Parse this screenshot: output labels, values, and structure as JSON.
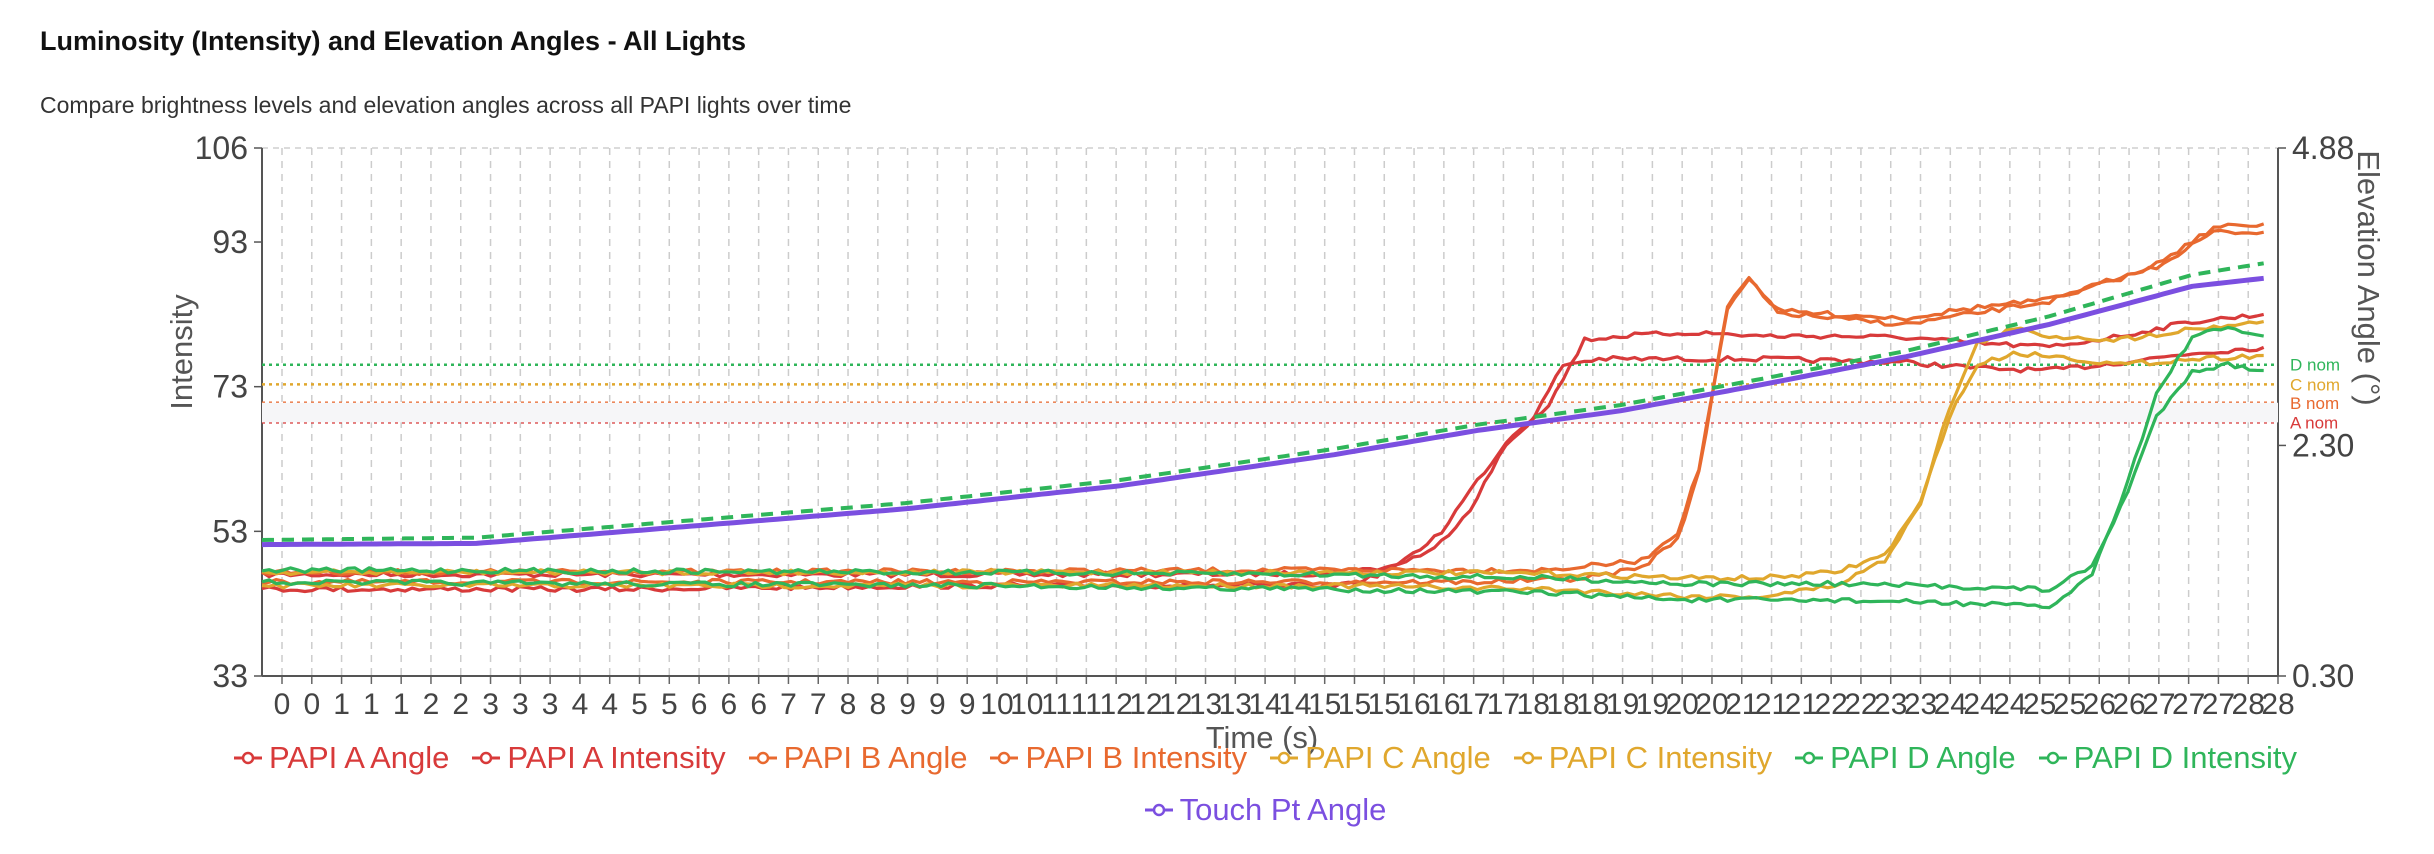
{
  "header": {
    "title": "Luminosity (Intensity) and Elevation Angles - All Lights",
    "subtitle": "Compare brightness levels and elevation angles across all PAPI lights over time"
  },
  "chart_data": {
    "type": "line",
    "xlabel": "Time (s)",
    "ylabel": "Intensity",
    "y2label": "Elevation Angle (°)",
    "xlim": [
      0,
      28.2
    ],
    "ylim": [
      33,
      106
    ],
    "y2lim": [
      0.3,
      4.88
    ],
    "x_ticks": [
      "0",
      "0",
      "1",
      "1",
      "1",
      "2",
      "2",
      "3",
      "3",
      "3",
      "4",
      "4",
      "5",
      "5",
      "6",
      "6",
      "6",
      "7",
      "7",
      "8",
      "8",
      "9",
      "9",
      "9",
      "10",
      "10",
      "11",
      "11",
      "12",
      "12",
      "12",
      "13",
      "13",
      "14",
      "14",
      "15",
      "15",
      "15",
      "16",
      "16",
      "17",
      "17",
      "18",
      "18",
      "18",
      "19",
      "19",
      "20",
      "20",
      "21",
      "21",
      "21",
      "22",
      "22",
      "23",
      "23",
      "24",
      "24",
      "24",
      "25",
      "25",
      "26",
      "26",
      "27",
      "27",
      "27",
      "28",
      "28"
    ],
    "y_ticks": [
      "33",
      "53",
      "73",
      "93",
      "106"
    ],
    "y2_ticks": [
      "0.30",
      "2.30",
      "4.88"
    ],
    "grid": {
      "vertical": true,
      "horizontal": false
    },
    "legend_position": "bottom",
    "reference_lines": [
      {
        "label": "D nom",
        "y": 3.0,
        "axis": "y2",
        "color": "#2fb55a"
      },
      {
        "label": "C nom",
        "y": 2.83,
        "axis": "y2",
        "color": "#e0a72d"
      },
      {
        "label": "B nom",
        "y": 2.67,
        "axis": "y2",
        "color": "#e8692f"
      },
      {
        "label": "A nom",
        "y": 2.5,
        "axis": "y2",
        "color": "#d83a3a"
      }
    ],
    "series": [
      {
        "name": "PAPI A Angle",
        "axis": "y2",
        "color": "#d83a3a",
        "points": [
          [
            0,
            1.18
          ],
          [
            6,
            1.18
          ],
          [
            12,
            1.18
          ],
          [
            15,
            1.19
          ],
          [
            15.8,
            1.25
          ],
          [
            16.4,
            1.4
          ],
          [
            16.9,
            1.75
          ],
          [
            17.4,
            2.3
          ],
          [
            17.8,
            2.55
          ],
          [
            18.2,
            3.0
          ],
          [
            18.7,
            3.05
          ],
          [
            19.5,
            3.05
          ],
          [
            21,
            3.05
          ],
          [
            23,
            3.02
          ],
          [
            24,
            2.97
          ],
          [
            25,
            2.95
          ],
          [
            26,
            3.02
          ],
          [
            27,
            3.1
          ],
          [
            28,
            3.15
          ]
        ]
      },
      {
        "name": "PAPI A Intensity",
        "axis": "y",
        "color": "#d83a3a",
        "points": [
          [
            0,
            45
          ],
          [
            5,
            45
          ],
          [
            10,
            45.5
          ],
          [
            15,
            45.5
          ],
          [
            15.5,
            46.5
          ],
          [
            16,
            49
          ],
          [
            16.5,
            53
          ],
          [
            17,
            60
          ],
          [
            17.5,
            66.5
          ],
          [
            18,
            70.5
          ],
          [
            18.5,
            79.5
          ],
          [
            19,
            80
          ],
          [
            20,
            80.5
          ],
          [
            21,
            80
          ],
          [
            22,
            80
          ],
          [
            23,
            79.8
          ],
          [
            24,
            79
          ],
          [
            25,
            78.5
          ],
          [
            26,
            80
          ],
          [
            27,
            82
          ],
          [
            28,
            83
          ]
        ]
      },
      {
        "name": "PAPI B Angle",
        "axis": "y2",
        "color": "#e8692f",
        "points": [
          [
            0,
            1.2
          ],
          [
            10,
            1.21
          ],
          [
            15,
            1.22
          ],
          [
            18,
            1.22
          ],
          [
            19.3,
            1.3
          ],
          [
            19.8,
            1.55
          ],
          [
            20.1,
            2.1
          ],
          [
            20.5,
            3.5
          ],
          [
            20.8,
            3.75
          ],
          [
            21.2,
            3.45
          ],
          [
            22,
            3.4
          ],
          [
            23,
            3.35
          ],
          [
            24,
            3.45
          ],
          [
            25,
            3.55
          ],
          [
            25.5,
            3.65
          ],
          [
            26.5,
            3.85
          ],
          [
            27.3,
            4.15
          ],
          [
            28,
            4.15
          ]
        ]
      },
      {
        "name": "PAPI B Intensity",
        "axis": "y",
        "color": "#e8692f",
        "points": [
          [
            0,
            46
          ],
          [
            10,
            46
          ],
          [
            17,
            46
          ],
          [
            18.5,
            46.5
          ],
          [
            19.3,
            48
          ],
          [
            19.8,
            52
          ],
          [
            20.1,
            61
          ],
          [
            20.5,
            84
          ],
          [
            20.8,
            88
          ],
          [
            21.2,
            83.5
          ],
          [
            22,
            83
          ],
          [
            23,
            82.5
          ],
          [
            24,
            84
          ],
          [
            25,
            85
          ],
          [
            25.5,
            86.5
          ],
          [
            26.5,
            90
          ],
          [
            27.3,
            95
          ],
          [
            28,
            95.5
          ]
        ]
      },
      {
        "name": "PAPI C Angle",
        "axis": "y2",
        "color": "#e0a72d",
        "points": [
          [
            0,
            1.2
          ],
          [
            10,
            1.2
          ],
          [
            15,
            1.2
          ],
          [
            18,
            1.19
          ],
          [
            20,
            1.15
          ],
          [
            21,
            1.15
          ],
          [
            22,
            1.2
          ],
          [
            22.7,
            1.35
          ],
          [
            23.2,
            1.8
          ],
          [
            23.6,
            2.55
          ],
          [
            24,
            3.0
          ],
          [
            24.5,
            3.1
          ],
          [
            25,
            3.08
          ],
          [
            26,
            3.0
          ],
          [
            27,
            3.05
          ],
          [
            28,
            3.08
          ]
        ]
      },
      {
        "name": "PAPI C Intensity",
        "axis": "y",
        "color": "#e0a72d",
        "points": [
          [
            0,
            45.5
          ],
          [
            10,
            45.5
          ],
          [
            15,
            45.5
          ],
          [
            18,
            45
          ],
          [
            20,
            44
          ],
          [
            21,
            44
          ],
          [
            22,
            45.5
          ],
          [
            22.7,
            49
          ],
          [
            23.2,
            57
          ],
          [
            23.6,
            70
          ],
          [
            24,
            79
          ],
          [
            24.5,
            81
          ],
          [
            25,
            80
          ],
          [
            26,
            79.5
          ],
          [
            27,
            81
          ],
          [
            28,
            82
          ]
        ]
      },
      {
        "name": "PAPI D Angle",
        "axis": "y2",
        "color": "#2fb55a",
        "points": [
          [
            0,
            1.22
          ],
          [
            10,
            1.2
          ],
          [
            15,
            1.18
          ],
          [
            18,
            1.15
          ],
          [
            20,
            1.1
          ],
          [
            22,
            1.1
          ],
          [
            24,
            1.07
          ],
          [
            25,
            1.05
          ],
          [
            25.6,
            1.25
          ],
          [
            26.1,
            1.9
          ],
          [
            26.5,
            2.55
          ],
          [
            27,
            2.95
          ],
          [
            27.5,
            3.0
          ],
          [
            28,
            2.95
          ]
        ]
      },
      {
        "name": "PAPI D Intensity",
        "axis": "y",
        "color": "#2fb55a",
        "points": [
          [
            0,
            46
          ],
          [
            10,
            45.5
          ],
          [
            15,
            45
          ],
          [
            18,
            44.5
          ],
          [
            20,
            43.5
          ],
          [
            22,
            43.5
          ],
          [
            24,
            43
          ],
          [
            25,
            42.5
          ],
          [
            25.6,
            47
          ],
          [
            26.1,
            60
          ],
          [
            26.5,
            72
          ],
          [
            27,
            80
          ],
          [
            27.5,
            81
          ],
          [
            28,
            80
          ]
        ]
      },
      {
        "name": "Touch Pt Angle",
        "axis": "y2",
        "color": "#7b4fe0",
        "points": [
          [
            0,
            1.44
          ],
          [
            3,
            1.45
          ],
          [
            6,
            1.6
          ],
          [
            9,
            1.75
          ],
          [
            12,
            1.95
          ],
          [
            15,
            2.22
          ],
          [
            17,
            2.43
          ],
          [
            19,
            2.6
          ],
          [
            21,
            2.83
          ],
          [
            23,
            3.07
          ],
          [
            25,
            3.35
          ],
          [
            27,
            3.68
          ],
          [
            28,
            3.75
          ]
        ]
      },
      {
        "name": "Touch Pt Angle (dashed)",
        "legend": false,
        "dashed": true,
        "axis": "y2",
        "color": "#2fb55a",
        "points": [
          [
            0,
            1.48
          ],
          [
            3,
            1.5
          ],
          [
            6,
            1.65
          ],
          [
            9,
            1.8
          ],
          [
            12,
            2.0
          ],
          [
            15,
            2.27
          ],
          [
            17,
            2.48
          ],
          [
            19,
            2.65
          ],
          [
            21,
            2.88
          ],
          [
            23,
            3.12
          ],
          [
            25,
            3.42
          ],
          [
            27,
            3.78
          ],
          [
            28,
            3.88
          ]
        ]
      }
    ]
  }
}
